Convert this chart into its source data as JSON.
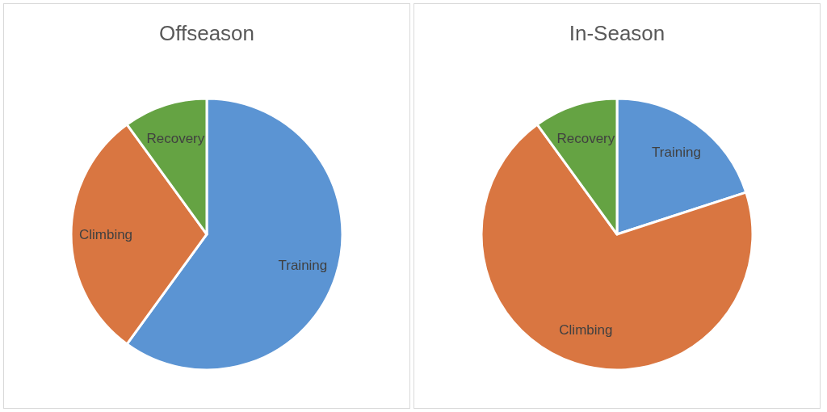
{
  "chart_data": [
    {
      "type": "pie",
      "title": "Offseason",
      "categories": [
        "Training",
        "Climbing",
        "Recovery"
      ],
      "values": [
        60,
        30,
        10
      ],
      "colors": [
        "#5b94d3",
        "#d97641",
        "#65a343"
      ]
    },
    {
      "type": "pie",
      "title": "In-Season",
      "categories": [
        "Training",
        "Climbing",
        "Recovery"
      ],
      "values": [
        20,
        70,
        10
      ],
      "colors": [
        "#5b94d3",
        "#d97641",
        "#65a343"
      ]
    }
  ]
}
